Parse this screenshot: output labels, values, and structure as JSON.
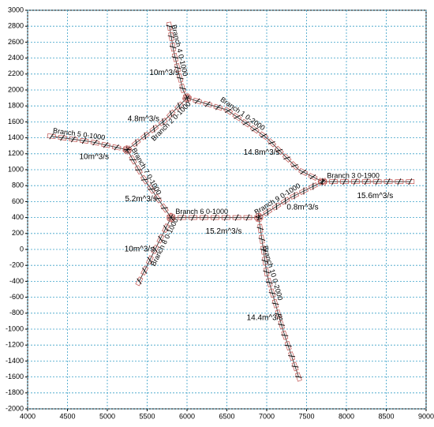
{
  "chart_data": {
    "type": "network",
    "xlim": [
      4000,
      9000
    ],
    "ylim": [
      -2000,
      3000
    ],
    "xticks": [
      4000,
      4500,
      5000,
      5500,
      6000,
      6500,
      7000,
      7500,
      8000,
      8500,
      9000
    ],
    "yticks": [
      -2000,
      -1800,
      -1600,
      -1400,
      -1200,
      -1000,
      -800,
      -600,
      -400,
      -200,
      0,
      200,
      400,
      600,
      800,
      1000,
      1200,
      1400,
      1600,
      1800,
      2000,
      2200,
      2400,
      2600,
      2800,
      3000
    ],
    "grid": true,
    "branches": [
      {
        "name": "Branch 4 0-1000",
        "flow": "10m^3/s",
        "x": [
          5780,
          5830,
          5900,
          5950,
          6000
        ],
        "y": [
          2800,
          2500,
          2200,
          2000,
          1900
        ]
      },
      {
        "name": "Branch 1 0-2000",
        "flow": "14.8m^3/s",
        "x": [
          6000,
          6500,
          7000,
          7400,
          7700
        ],
        "y": [
          1900,
          1750,
          1400,
          1000,
          850
        ]
      },
      {
        "name": "Branch 3 0-1900",
        "flow": "15.6m^3/s",
        "x": [
          7700,
          8800
        ],
        "y": [
          850,
          850
        ]
      },
      {
        "name": "Branch 2 0-1000",
        "flow": "4.8m^3/s",
        "x": [
          6000,
          5700,
          5250
        ],
        "y": [
          1900,
          1600,
          1250
        ]
      },
      {
        "name": "Branch 5 0-1000",
        "flow": "10m^3/s",
        "x": [
          4300,
          4800,
          5250
        ],
        "y": [
          1420,
          1350,
          1250
        ]
      },
      {
        "name": "Branch 7 0-1000",
        "flow": "5.2m^3/s",
        "x": [
          5250,
          5450,
          5800
        ],
        "y": [
          1250,
          900,
          400
        ]
      },
      {
        "name": "Branch 6 0-1000",
        "flow": "15.2m^3/s",
        "x": [
          5800,
          6900
        ],
        "y": [
          400,
          400
        ]
      },
      {
        "name": "Branch 9 0-1000",
        "flow": "0.8m^3/s",
        "x": [
          6900,
          7300,
          7700
        ],
        "y": [
          400,
          650,
          850
        ]
      },
      {
        "name": "Branch 8 0-1000",
        "flow": "10m^3/s",
        "x": [
          5800,
          5600,
          5400
        ],
        "y": [
          400,
          0,
          -400
        ]
      },
      {
        "name": "Branch 10 0-2000",
        "flow": "14.4m^3/s",
        "x": [
          6900,
          7000,
          7200,
          7400
        ],
        "y": [
          400,
          -300,
          -1000,
          -1600
        ]
      }
    ]
  }
}
